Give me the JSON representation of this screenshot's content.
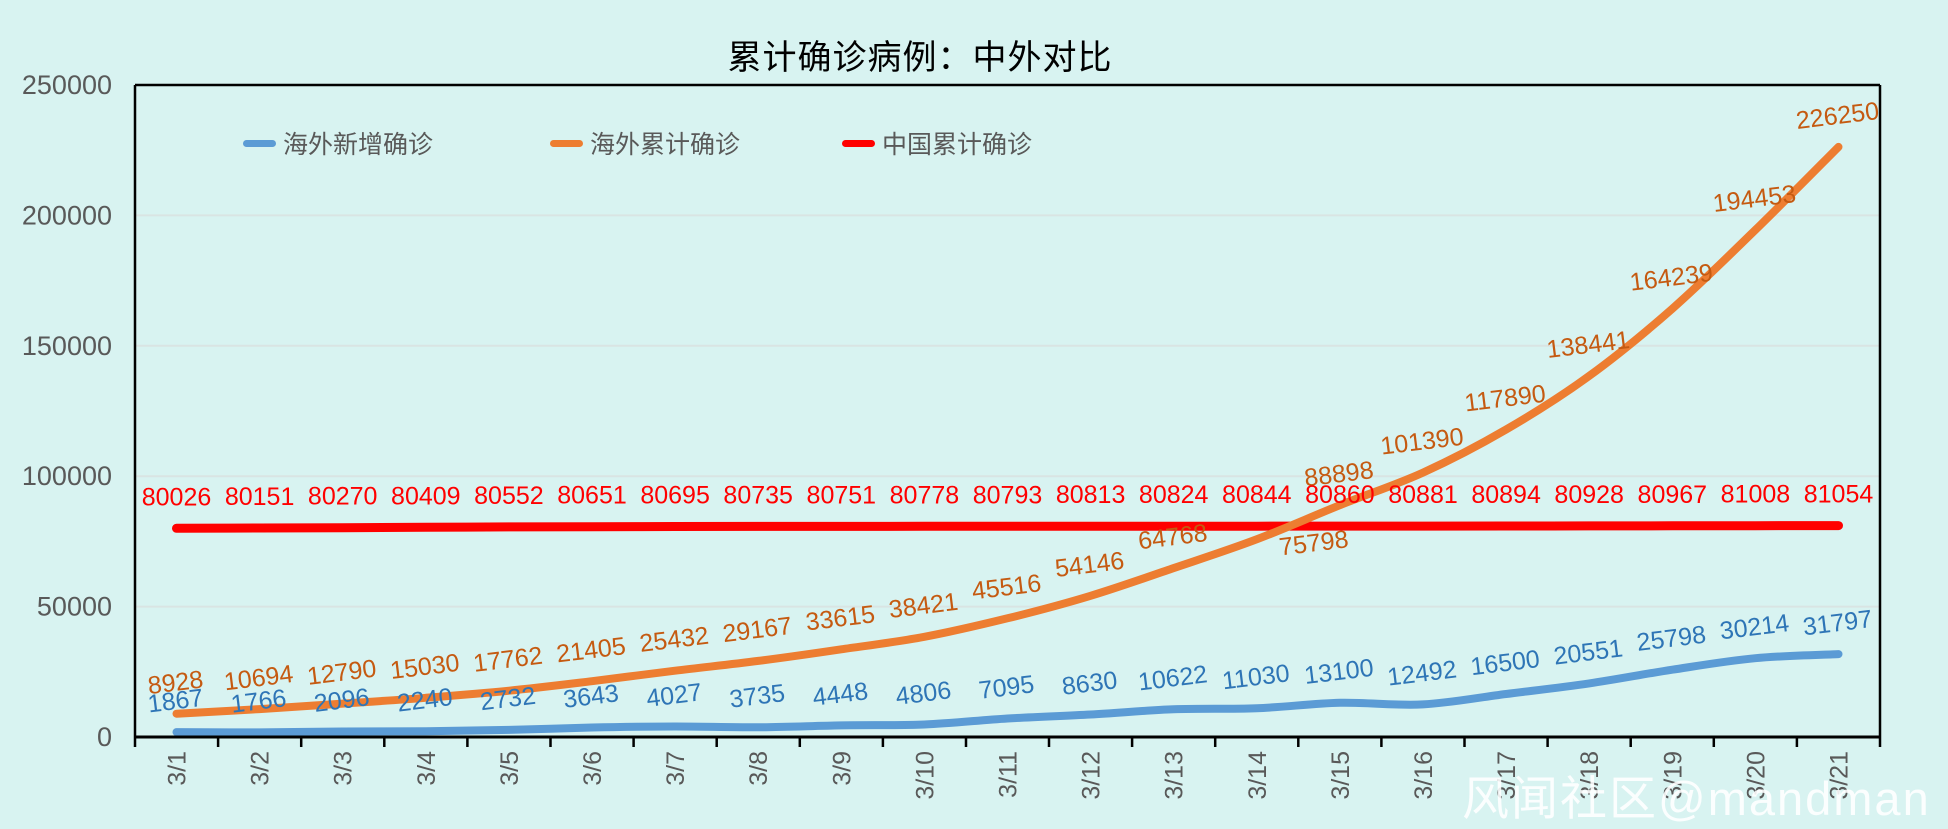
{
  "title": "累计确诊病例：中外对比",
  "watermark": "风闻社区@mandman",
  "colors": {
    "background": "#D8F3F1",
    "grid": "#D9E4E3",
    "axis": "#000000",
    "tick_label": "#595959",
    "title": "#000000",
    "watermark": "#FFFFFF"
  },
  "chart_data": {
    "type": "line",
    "title": "累计确诊病例：中外对比",
    "xlabel": "",
    "ylabel": "",
    "ylim": [
      0,
      250000
    ],
    "ytick_interval": 50000,
    "yticks": [
      "0",
      "50000",
      "100000",
      "150000",
      "200000",
      "250000"
    ],
    "grid": true,
    "legend_position": "top-left-row",
    "categories": [
      "3/1",
      "3/2",
      "3/3",
      "3/4",
      "3/5",
      "3/6",
      "3/7",
      "3/8",
      "3/9",
      "3/10",
      "3/11",
      "3/12",
      "3/13",
      "3/14",
      "3/15",
      "3/16",
      "3/17",
      "3/18",
      "3/19",
      "3/20",
      "3/21"
    ],
    "series": [
      {
        "name": "海外新增确诊",
        "color": "#5B9BD5",
        "label_color": "#2E75B6",
        "values": [
          1867,
          1766,
          2096,
          2240,
          2732,
          3643,
          4027,
          3735,
          4448,
          4806,
          7095,
          8630,
          10622,
          11030,
          13100,
          12492,
          16500,
          20551,
          25798,
          30214,
          31797
        ]
      },
      {
        "name": "海外累计确诊",
        "color": "#ED7D31",
        "label_color": "#C55A11",
        "values": [
          8928,
          10694,
          12790,
          15030,
          17762,
          21405,
          25432,
          29167,
          33615,
          38421,
          45516,
          54146,
          64768,
          75798,
          88898,
          101390,
          117890,
          138441,
          164239,
          194453,
          226250
        ]
      },
      {
        "name": "中国累计确诊",
        "color": "#FF0000",
        "label_color": "#FF0000",
        "values": [
          80026,
          80151,
          80270,
          80409,
          80552,
          80651,
          80695,
          80735,
          80751,
          80778,
          80793,
          80813,
          80824,
          80844,
          80860,
          80881,
          80894,
          80928,
          80967,
          81008,
          81054
        ]
      }
    ]
  }
}
